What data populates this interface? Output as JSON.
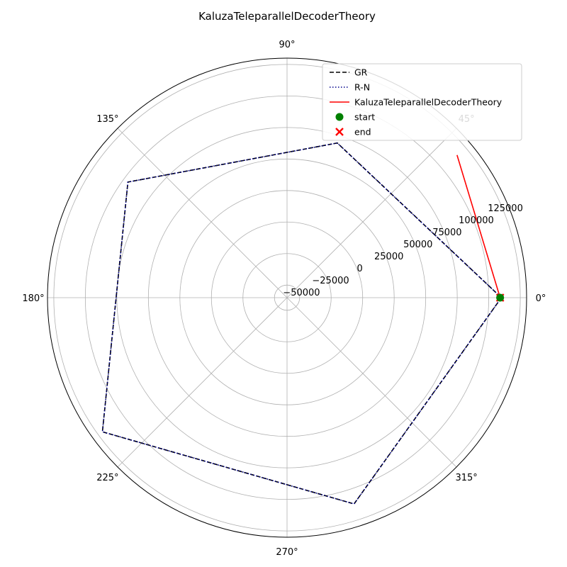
{
  "chart_data": {
    "type": "line",
    "subtype": "polar",
    "title": "KaluzaTeleparallelDecoderTheory",
    "theta_ticks_deg": [
      0,
      45,
      90,
      135,
      180,
      225,
      270,
      315
    ],
    "theta_tick_labels": [
      "0°",
      "45°",
      "90°",
      "135°",
      "180°",
      "225°",
      "270°",
      "315°"
    ],
    "r_ticks": [
      -50000,
      -25000,
      0,
      25000,
      50000,
      75000,
      100000,
      125000
    ],
    "r_tick_labels": [
      "−50000",
      "−25000",
      "0",
      "25000",
      "50000",
      "75000",
      "100000",
      "125000"
    ],
    "rlim": [
      -60000,
      130000
    ],
    "grid": true,
    "legend_position": "top-right",
    "series": [
      {
        "name": "GR",
        "style": "dashed",
        "color": "#000000",
        "points": [
          {
            "theta_deg": 0,
            "r": 110000
          },
          {
            "theta_deg": 288,
            "r": 112000
          },
          {
            "theta_deg": 216,
            "r": 121000
          },
          {
            "theta_deg": 144,
            "r": 96000
          },
          {
            "theta_deg": 72,
            "r": 69000
          },
          {
            "theta_deg": 0,
            "r": 110000
          }
        ]
      },
      {
        "name": "R-N",
        "style": "dotted",
        "color": "#00008b",
        "points": [
          {
            "theta_deg": 0,
            "r": 110000
          },
          {
            "theta_deg": 288,
            "r": 112000
          },
          {
            "theta_deg": 216,
            "r": 121000
          },
          {
            "theta_deg": 144,
            "r": 96000
          },
          {
            "theta_deg": 72,
            "r": 69000
          },
          {
            "theta_deg": 0,
            "r": 110000
          }
        ]
      },
      {
        "name": "KaluzaTeleparallelDecoderTheory",
        "style": "solid",
        "color": "#ff0000",
        "points": [
          {
            "theta_deg": 0,
            "r": 109000
          },
          {
            "theta_deg": 40,
            "r": 116000
          }
        ]
      }
    ],
    "markers": [
      {
        "name": "start",
        "shape": "circle",
        "color": "#008000",
        "theta_deg": 0,
        "r": 109000
      },
      {
        "name": "end",
        "shape": "x",
        "color": "#ff0000",
        "theta_deg": 0,
        "r": 109000
      }
    ]
  }
}
